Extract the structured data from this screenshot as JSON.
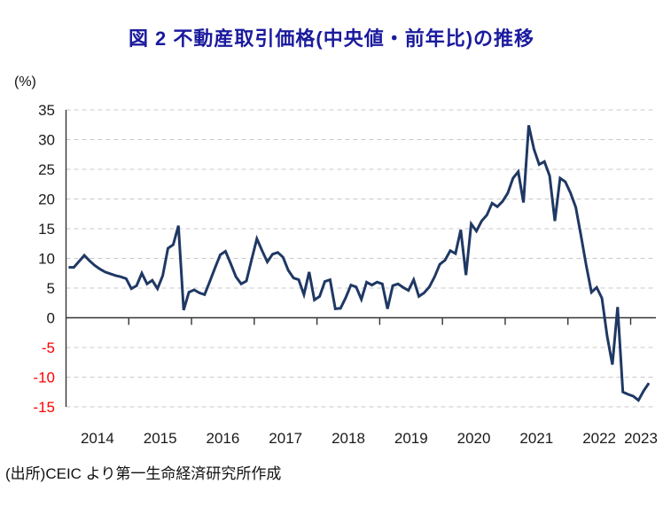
{
  "title": "図 2  不動産取引価格(中央値・前年比)の推移",
  "unit_label": "(%)",
  "source_note": "(出所)CEIC より第一生命経済研究所作成",
  "colors": {
    "title": "#1b1b9e",
    "line": "#1f3864",
    "grid": "#c9c9c9",
    "axis": "#333333",
    "tick_label": "#1a1a1a",
    "negative_tick_label": "#ff0000"
  },
  "chart_data": {
    "type": "line",
    "title": "図 2  不動産取引価格(中央値・前年比)の推移",
    "ylabel": "(%)",
    "frequency": "monthly",
    "x_start": "2014-01",
    "x_end": "2023-04",
    "year_labels": [
      "2014",
      "2015",
      "2016",
      "2017",
      "2018",
      "2019",
      "2020",
      "2021",
      "2022",
      "2023"
    ],
    "yticks": [
      35,
      30,
      25,
      20,
      15,
      10,
      5,
      0,
      -5,
      -10,
      -15
    ],
    "ylim": [
      -15,
      35
    ],
    "grid": "horizontal-dashed, zero line solid",
    "legend": "none",
    "series": [
      {
        "name": "不動産取引価格(中央値・前年比)",
        "values": [
          8.5,
          8.5,
          9.5,
          10.5,
          9.6,
          8.8,
          8.2,
          7.7,
          7.4,
          7.1,
          6.9,
          6.6,
          4.9,
          5.4,
          7.5,
          5.7,
          6.3,
          4.9,
          7.1,
          11.7,
          12.3,
          15.5,
          1.3,
          4.3,
          4.7,
          4.2,
          3.9,
          6.1,
          8.4,
          10.6,
          11.2,
          9.1,
          6.9,
          5.7,
          6.2,
          9.8,
          13.3,
          11.3,
          9.4,
          10.7,
          11.0,
          10.2,
          8.0,
          6.7,
          6.4,
          3.9,
          7.7,
          3.0,
          3.6,
          6.1,
          6.4,
          1.5,
          1.6,
          3.4,
          5.5,
          5.2,
          3.1,
          6.0,
          5.5,
          6.0,
          5.7,
          1.5,
          5.4,
          5.7,
          5.1,
          4.6,
          6.4,
          3.6,
          4.2,
          5.2,
          6.9,
          9.0,
          9.7,
          11.3,
          10.8,
          14.8,
          7.2,
          15.8,
          14.6,
          16.3,
          17.3,
          19.3,
          18.7,
          19.6,
          21.0,
          23.5,
          24.6,
          19.4,
          32.4,
          28.4,
          25.8,
          26.3,
          23.9,
          16.3,
          23.5,
          22.9,
          21.0,
          18.6,
          13.8,
          8.8,
          4.3,
          5.1,
          3.3,
          -3.1,
          -7.9,
          1.8,
          -12.5,
          -12.9,
          -13.2,
          -13.9,
          -12.3,
          -11.0
        ]
      }
    ]
  }
}
